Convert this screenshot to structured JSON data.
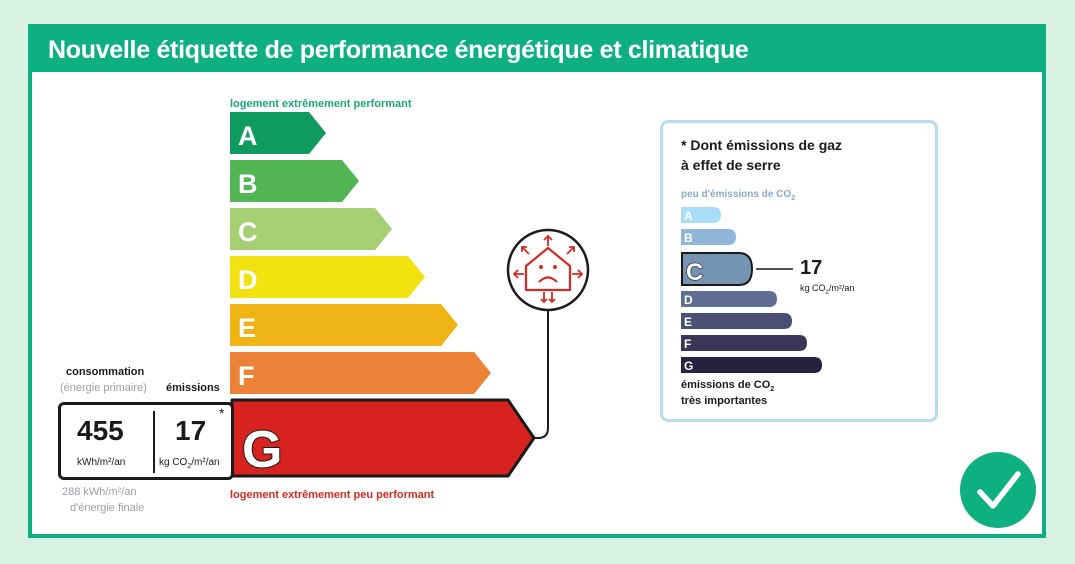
{
  "title": "Nouvelle étiquette de performance énergétique et climatique",
  "energy_scale": {
    "top_label": "logement extrêmement performant",
    "bottom_label": "logement extrêmement peu performant",
    "classes": [
      {
        "letter": "A",
        "color": "#0f9a61"
      },
      {
        "letter": "B",
        "color": "#52b553"
      },
      {
        "letter": "C",
        "color": "#a6cf74"
      },
      {
        "letter": "D",
        "color": "#f1e312"
      },
      {
        "letter": "E",
        "color": "#efb313"
      },
      {
        "letter": "F",
        "color": "#eb8235"
      },
      {
        "letter": "G",
        "color": "#d7221f"
      }
    ],
    "current_class": "G"
  },
  "consumption": {
    "heading": "consommation",
    "subheading": "(énergie primaire)",
    "value": "455",
    "unit": "kWh/m²/an",
    "final_energy_line1": "288 kWh/m²/an",
    "final_energy_line2": "d'énergie finale"
  },
  "emissions": {
    "heading": "émissions",
    "value": "17",
    "unit_prefix": "kg CO",
    "unit_sub": "2",
    "unit_suffix": "/m²/an",
    "asterisk": "*"
  },
  "ghg_panel": {
    "title_line1": "* Dont émissions de gaz",
    "title_line2": "à effet de serre",
    "top_label_prefix": "peu d'émissions de CO",
    "top_label_sub": "2",
    "bottom_label_line1_prefix": "émissions de CO",
    "bottom_label_line1_sub": "2",
    "bottom_label_line2": "très importantes",
    "classes": [
      {
        "letter": "A",
        "color": "#a9dcf5"
      },
      {
        "letter": "B",
        "color": "#8fb6d9"
      },
      {
        "letter": "C",
        "color": "#7593b2"
      },
      {
        "letter": "D",
        "color": "#5e6f93"
      },
      {
        "letter": "E",
        "color": "#4b4f73"
      },
      {
        "letter": "F",
        "color": "#3a3658"
      },
      {
        "letter": "G",
        "color": "#272240"
      }
    ],
    "current_class": "C",
    "value": "17",
    "unit_prefix": "kg CO",
    "unit_sub": "2",
    "unit_suffix": "/m²/an"
  },
  "icons": {
    "house": "sad-house-heat-loss-icon",
    "check": "checkmark-icon"
  },
  "colors": {
    "brand_green": "#0eb080",
    "background": "#d8f2e6",
    "red": "#d42a22"
  }
}
